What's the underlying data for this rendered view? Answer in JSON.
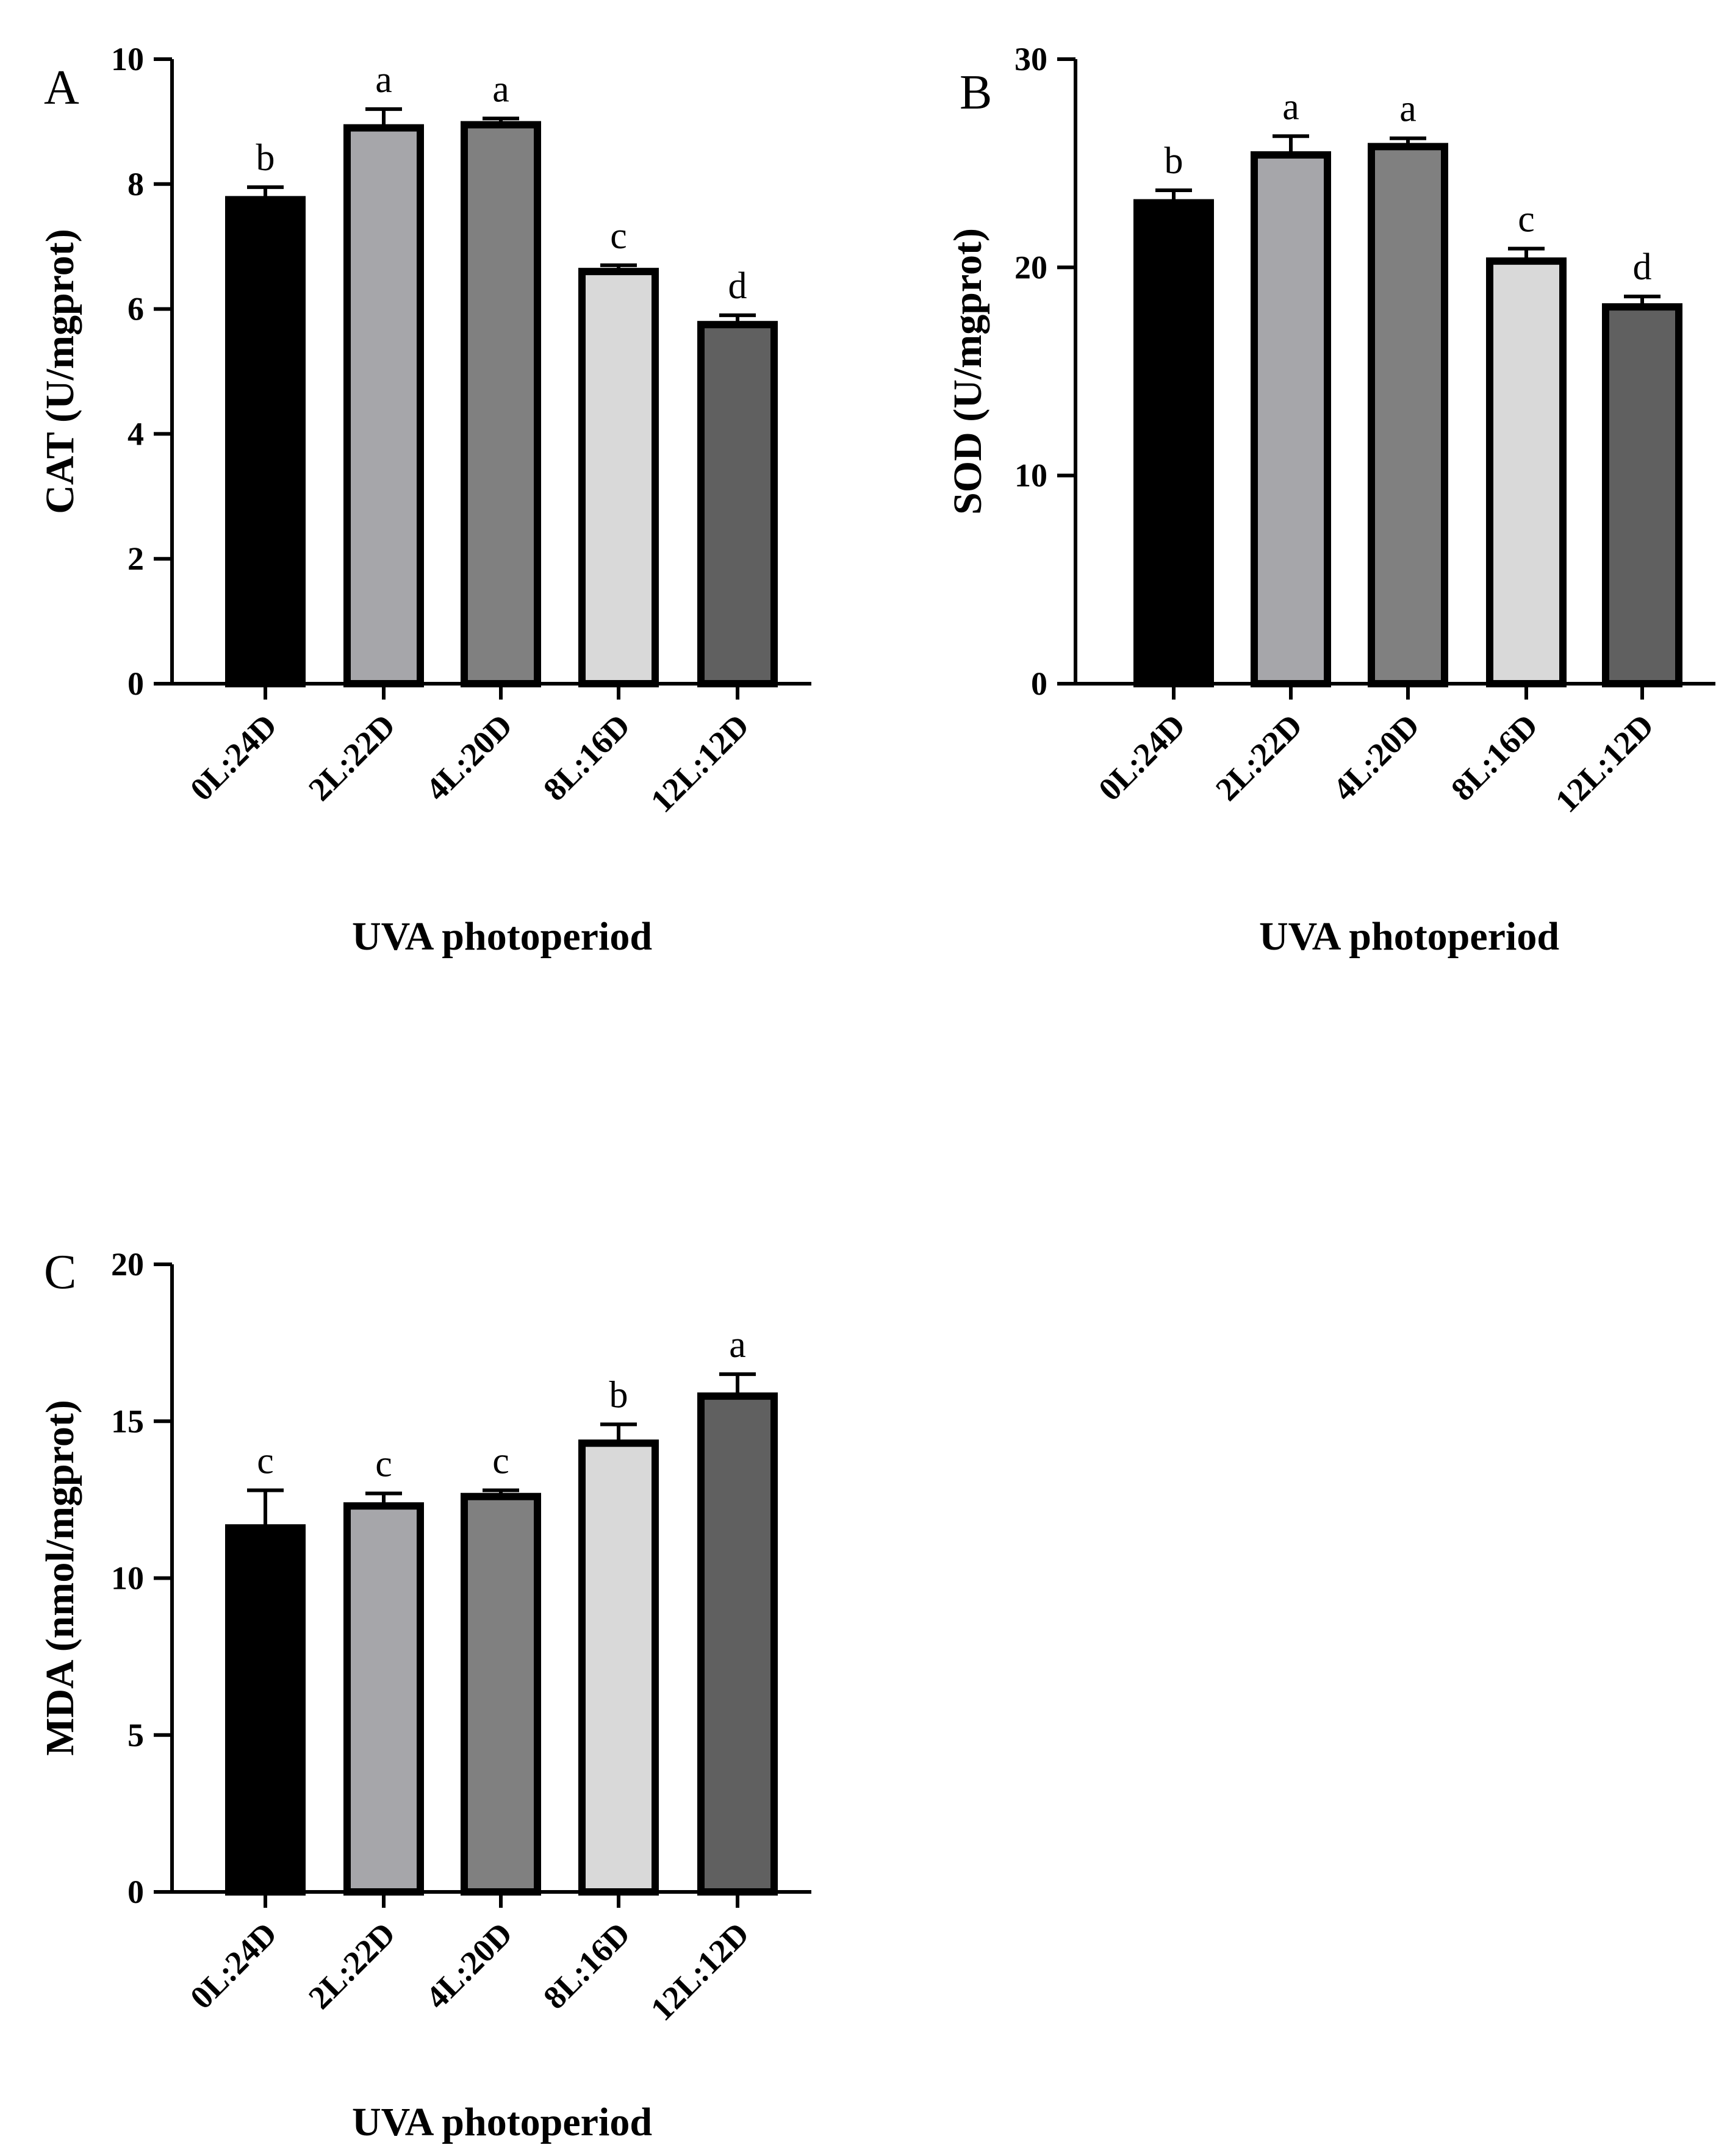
{
  "chart_data": [
    {
      "type": "bar",
      "panel_label": "A",
      "categories": [
        "0L:24D",
        "2L:22D",
        "4L:20D",
        "8L:16D",
        "12L:12D"
      ],
      "values": [
        7.75,
        8.9,
        8.95,
        6.6,
        5.75
      ],
      "errors": [
        0.2,
        0.3,
        0.1,
        0.1,
        0.15
      ],
      "significance": [
        "b",
        "a",
        "a",
        "c",
        "d"
      ],
      "bar_colors": [
        "#000000",
        "#a6a6aa",
        "#808080",
        "#d9d9d9",
        "#606060"
      ],
      "xlabel": "UVA photoperiod",
      "ylabel": "CAT (U/mgprot)",
      "ylim": [
        0,
        10
      ],
      "yticks": [
        0,
        2,
        4,
        6,
        8,
        10
      ],
      "grid": false
    },
    {
      "type": "bar",
      "panel_label": "B",
      "categories": [
        "0L:24D",
        "2L:22D",
        "4L:20D",
        "8L:16D",
        "12L:12D"
      ],
      "values": [
        23.1,
        25.4,
        25.8,
        20.3,
        18.1
      ],
      "errors": [
        0.6,
        0.9,
        0.4,
        0.6,
        0.5
      ],
      "significance": [
        "b",
        "a",
        "a",
        "c",
        "d"
      ],
      "bar_colors": [
        "#000000",
        "#a6a6aa",
        "#808080",
        "#d9d9d9",
        "#606060"
      ],
      "xlabel": "UVA photoperiod",
      "ylabel": "SOD (U/mgprot)",
      "ylim": [
        0,
        30
      ],
      "yticks": [
        0,
        10,
        20,
        30
      ],
      "grid": false
    },
    {
      "type": "bar",
      "panel_label": "C",
      "categories": [
        "0L:24D",
        "2L:22D",
        "4L:20D",
        "8L:16D",
        "12L:12D"
      ],
      "values": [
        11.6,
        12.3,
        12.6,
        14.3,
        15.8
      ],
      "errors": [
        1.2,
        0.4,
        0.2,
        0.6,
        0.7
      ],
      "significance": [
        "c",
        "c",
        "c",
        "b",
        "a"
      ],
      "bar_colors": [
        "#000000",
        "#a6a6aa",
        "#808080",
        "#d9d9d9",
        "#606060"
      ],
      "xlabel": "UVA photoperiod",
      "ylabel": "MDA (nmol/mgprot)",
      "ylim": [
        0,
        20
      ],
      "yticks": [
        0,
        5,
        10,
        15,
        20
      ],
      "grid": false
    }
  ]
}
